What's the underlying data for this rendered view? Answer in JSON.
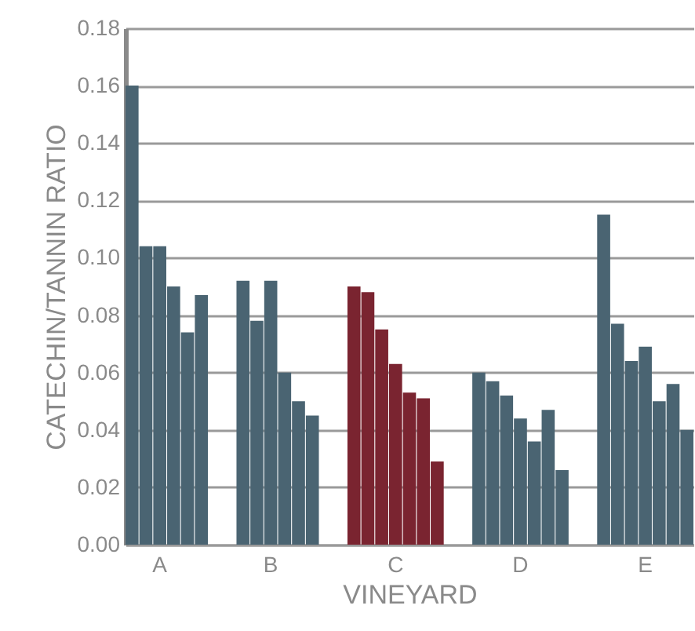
{
  "chart_data": {
    "type": "bar",
    "xlabel": "VINEYARD",
    "ylabel": "CATECHIN/TANNIN RATIO",
    "categories": [
      null,
      null,
      "A",
      null,
      null,
      null,
      null,
      null,
      null,
      null,
      "B",
      null,
      null,
      null,
      null,
      null,
      null,
      null,
      null,
      "C",
      null,
      null,
      null,
      null,
      null,
      null,
      null,
      null,
      "D",
      null,
      null,
      null,
      null,
      null,
      null,
      null,
      null,
      "E",
      null,
      null,
      null
    ],
    "values": [
      0.16,
      0.104,
      0.104,
      0.09,
      0.074,
      0.087,
      null,
      null,
      0.092,
      0.078,
      0.092,
      0.06,
      0.05,
      0.045,
      null,
      null,
      0.09,
      0.088,
      0.075,
      0.063,
      0.053,
      0.051,
      0.029,
      null,
      null,
      0.06,
      0.057,
      0.052,
      0.044,
      0.036,
      0.047,
      0.026,
      null,
      null,
      0.115,
      0.077,
      0.064,
      0.069,
      0.05,
      0.056,
      0.04
    ],
    "colors": [
      "#4a6472",
      "#4a6472",
      "#4a6472",
      "#4a6472",
      "#4a6472",
      "#4a6472",
      null,
      null,
      "#4a6472",
      "#4a6472",
      "#4a6472",
      "#4a6472",
      "#4a6472",
      "#4a6472",
      null,
      null,
      "#7a2430",
      "#7a2430",
      "#7a2430",
      "#7a2430",
      "#7a2430",
      "#7a2430",
      "#7a2430",
      null,
      null,
      "#4a6472",
      "#4a6472",
      "#4a6472",
      "#4a6472",
      "#4a6472",
      "#4a6472",
      "#4a6472",
      null,
      null,
      "#4a6472",
      "#4a6472",
      "#4a6472",
      "#4a6472",
      "#4a6472",
      "#4a6472",
      "#4a6472"
    ],
    "ylim": [
      0,
      0.18
    ],
    "yticks": [
      {
        "value": 0,
        "label": "0.00"
      },
      {
        "value": 0.02,
        "label": "0.02"
      },
      {
        "value": 0.04,
        "label": "0.04"
      },
      {
        "value": 0.06,
        "label": "0.06"
      },
      {
        "value": 0.08,
        "label": "0.08"
      },
      {
        "value": 0.1,
        "label": "0.10"
      },
      {
        "value": 0.12,
        "label": "0.12"
      },
      {
        "value": 0.14,
        "label": "0.14"
      },
      {
        "value": 0.16,
        "label": "0.16"
      },
      {
        "value": 0.18,
        "label": "0.18"
      }
    ],
    "grid": "y"
  }
}
